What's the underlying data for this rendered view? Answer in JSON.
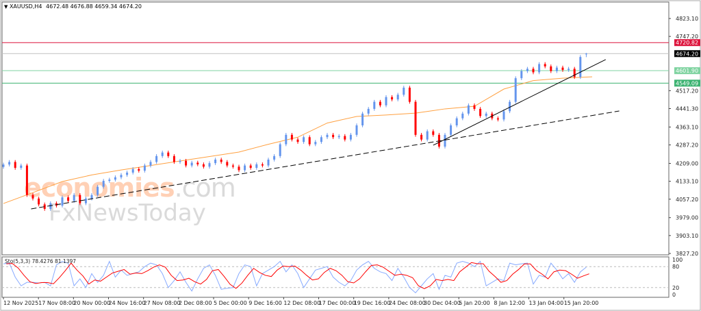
{
  "header": {
    "symbol_label": "XAUUSD,H4",
    "ohlc": "4672.48 4676.88 4659.34 4674.20",
    "dropdown_icon": "triangle-down-icon"
  },
  "watermark": {
    "line1_main": "economies",
    "line1_suffix": ".com",
    "line2": "FxNewsToday"
  },
  "chart_data": {
    "type": "candlestick",
    "symbol": "XAUUSD",
    "timeframe": "H4",
    "ylim": [
      3827.2,
      4823.1
    ],
    "y_ticks": [
      "4823.10",
      "4747.20",
      "4517.20",
      "4441.30",
      "4363.10",
      "4287.20",
      "4209.00",
      "4133.10",
      "4057.20",
      "3979.00",
      "3903.10",
      "3827.20"
    ],
    "x_tick_labels": [
      "12 Nov 2025",
      "17 Nov 08:00",
      "20 Nov 00:00",
      "24 Nov 16:00",
      "27 Nov 08:00",
      "2 Dec 08:00",
      "5 Dec 00:00",
      "9 Dec 16:00",
      "12 Dec 08:00",
      "17 Dec 00:00",
      "19 Dec 16:00",
      "24 Dec 08:00",
      "30 Dec 04:00",
      "5 Jan 20:00",
      "8 Jan 12:00",
      "13 Jan 04:00",
      "15 Jan 20:00"
    ],
    "closes": [
      4204,
      4215,
      4190,
      4200,
      4075,
      4060,
      4035,
      4016,
      4040,
      4030,
      4065,
      4050,
      4075,
      4040,
      4060,
      4075,
      4110,
      4135,
      4140,
      4150,
      4160,
      4170,
      4185,
      4178,
      4200,
      4215,
      4240,
      4255,
      4240,
      4215,
      4220,
      4200,
      4212,
      4205,
      4195,
      4210,
      4225,
      4215,
      4200,
      4195,
      4180,
      4200,
      4190,
      4205,
      4200,
      4225,
      4240,
      4290,
      4330,
      4310,
      4300,
      4320,
      4290,
      4300,
      4320,
      4330,
      4320,
      4325,
      4310,
      4330,
      4370,
      4420,
      4440,
      4470,
      4455,
      4490,
      4480,
      4500,
      4530,
      4470,
      4330,
      4310,
      4345,
      4330,
      4280,
      4330,
      4370,
      4400,
      4420,
      4455,
      4440,
      4410,
      4420,
      4400,
      4395,
      4430,
      4470,
      4570,
      4600,
      4610,
      4595,
      4630,
      4620,
      4600,
      4615,
      4605,
      4610,
      4575,
      4660,
      4674.2
    ],
    "last_bar": {
      "open": 4672.48,
      "high": 4676.88,
      "low": 4659.34,
      "close": 4674.2
    },
    "moving_average": {
      "color": "#ffa040",
      "values_every_10_bars": [
        4039,
        4085,
        4132,
        4160,
        4181,
        4200,
        4219,
        4238,
        4257,
        4290,
        4320,
        4380,
        4408,
        4414,
        4422,
        4440,
        4451,
        4524,
        4560,
        4570,
        4576
      ]
    },
    "levels": [
      {
        "price": 4720.82,
        "label": "4720.82",
        "color": "#dc143c"
      },
      {
        "price": 4674.2,
        "label": "4674.20",
        "color": "#c0c0c0",
        "label_bg": "#000000"
      },
      {
        "price": 4601.9,
        "label": "4601.90",
        "color": "#7fd3a0"
      },
      {
        "price": 4549.09,
        "label": "4549.09",
        "color": "#3cb371"
      }
    ],
    "trendlines": [
      {
        "style": "solid",
        "from": {
          "bar": 73,
          "price": 4286
        },
        "to": {
          "bar": 102.3,
          "price": 4649
        },
        "color": "#000000"
      },
      {
        "style": "dashed",
        "from": {
          "bar": 4.7,
          "price": 4016
        },
        "to": {
          "bar": 104.6,
          "price": 4431
        },
        "color": "#000000"
      }
    ],
    "colors": {
      "bull": "#6495ed",
      "bear": "#ff0000"
    },
    "stochastic": {
      "label": "Sto(5,3,3) 78.4276 81.1397",
      "levels": [
        "100",
        "80",
        "20",
        "0"
      ],
      "k_color": "#87aaff",
      "d_color": "#ff0000",
      "k": [
        88,
        90,
        50,
        25,
        35,
        35,
        33,
        35,
        25,
        85,
        95,
        90,
        25,
        45,
        20,
        60,
        35,
        55,
        95,
        50,
        70,
        55,
        60,
        65,
        80,
        90,
        85,
        60,
        20,
        40,
        65,
        35,
        10,
        45,
        75,
        85,
        55,
        15,
        18,
        20,
        60,
        85,
        80,
        25,
        60,
        70,
        80,
        95,
        65,
        85,
        60,
        20,
        45,
        70,
        75,
        80,
        50,
        35,
        25,
        40,
        70,
        85,
        95,
        75,
        65,
        60,
        40,
        75,
        50,
        20,
        5,
        25,
        45,
        60,
        15,
        55,
        50,
        90,
        95,
        90,
        80,
        95,
        25,
        35,
        45,
        40,
        90,
        85,
        88,
        90,
        30,
        55,
        50,
        90,
        70,
        45,
        60,
        35,
        65,
        78.4
      ]
    }
  }
}
